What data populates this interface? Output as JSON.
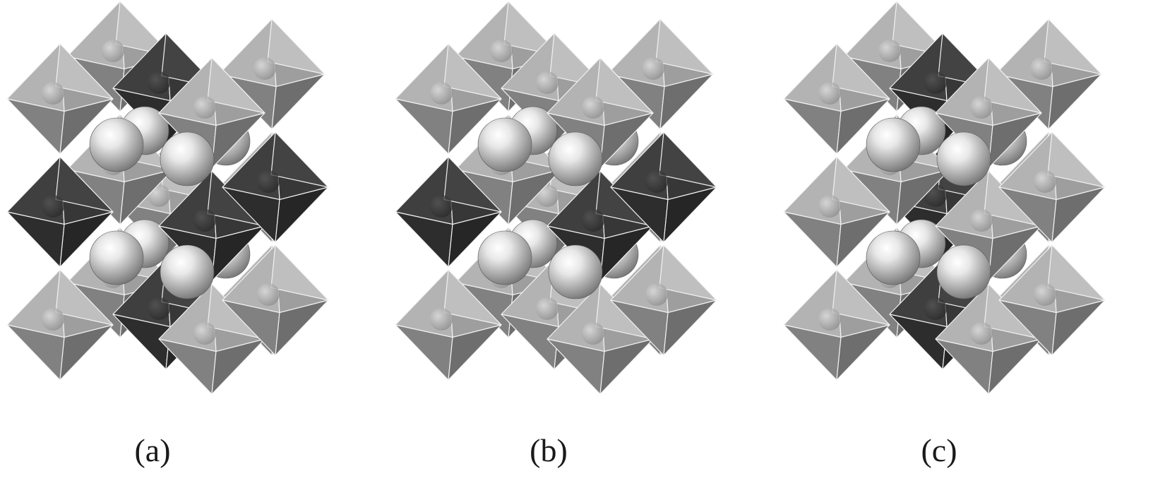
{
  "figure": {
    "panels": [
      {
        "label": "(a)",
        "dark_octahedra": [
          "top-back-center",
          "middle-left",
          "middle-right",
          "middle-front-center",
          "bottom-back-center"
        ]
      },
      {
        "label": "(b)",
        "dark_octahedra": [
          "middle-left",
          "middle-right",
          "middle-front-center"
        ]
      },
      {
        "label": "(c)",
        "dark_octahedra": [
          "top-back-center",
          "middle-back-center",
          "bottom-back-center"
        ]
      }
    ],
    "colors": {
      "light_octahedron": "#a6a6a6",
      "dark_octahedron": "#3a3a3a",
      "edge": "#f2f2f2",
      "sphere": "#e8e8e8",
      "background": "#ffffff"
    }
  }
}
